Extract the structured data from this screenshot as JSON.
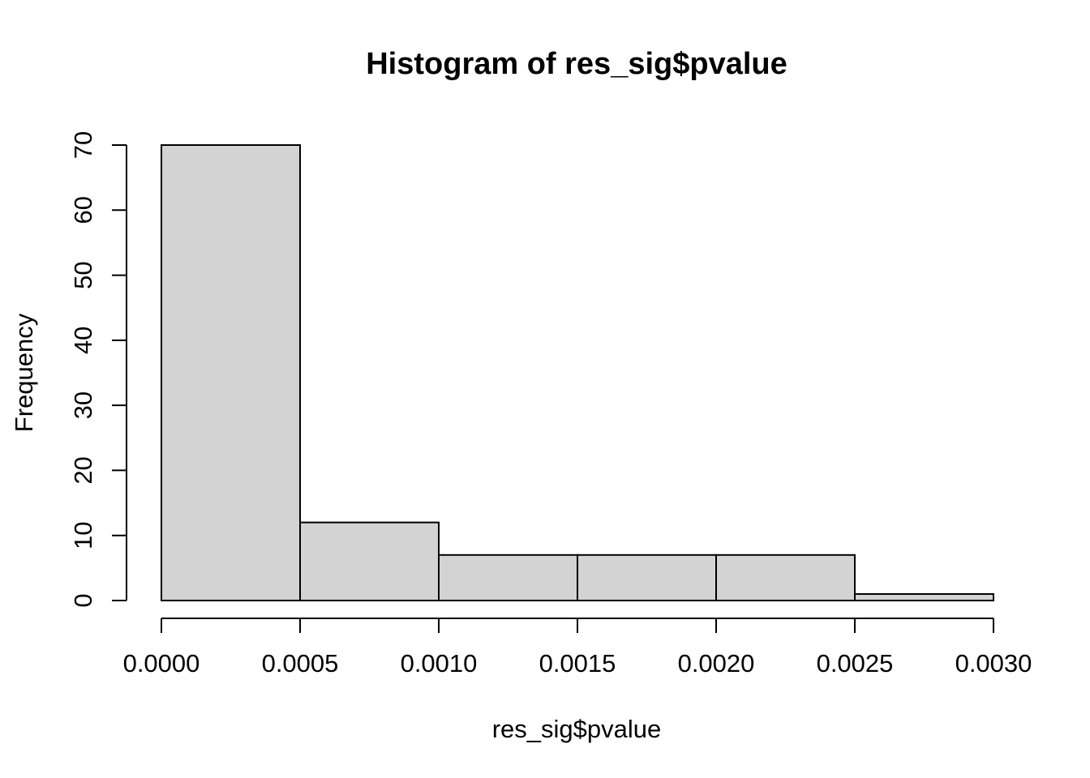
{
  "chart_data": {
    "type": "bar",
    "subtype": "histogram",
    "title": "Histogram of res_sig$pvalue",
    "xlabel": "res_sig$pvalue",
    "ylabel": "Frequency",
    "bin_edges": [
      0.0,
      0.0005,
      0.001,
      0.0015,
      0.002,
      0.0025,
      0.003
    ],
    "counts": [
      70,
      12,
      7,
      7,
      7,
      1
    ],
    "x_tick_values": [
      0.0,
      0.0005,
      0.001,
      0.0015,
      0.002,
      0.0025,
      0.003
    ],
    "x_tick_labels": [
      "0.0000",
      "0.0005",
      "0.0010",
      "0.0015",
      "0.0020",
      "0.0025",
      "0.0030"
    ],
    "y_tick_values": [
      0,
      10,
      20,
      30,
      40,
      50,
      60,
      70
    ],
    "y_tick_labels": [
      "0",
      "10",
      "20",
      "30",
      "40",
      "50",
      "60",
      "70"
    ],
    "xlim": [
      0,
      0.003
    ],
    "ylim": [
      0,
      70
    ],
    "grid": false,
    "legend": null,
    "colors": {
      "bar_fill": "#d3d3d3",
      "bar_stroke": "#000000",
      "axis": "#000000",
      "text": "#000000",
      "background": "#ffffff"
    }
  }
}
